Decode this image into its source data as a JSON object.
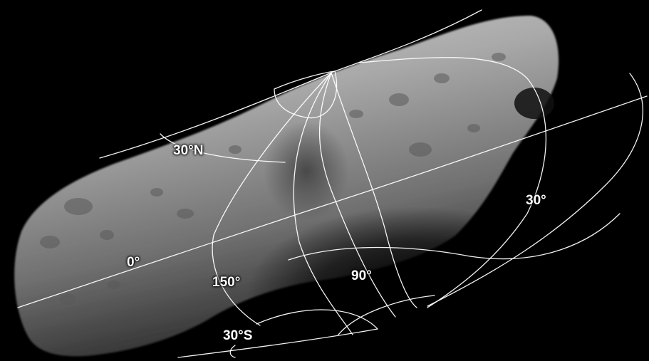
{
  "image": {
    "background_color": "#000000",
    "subject": "asteroid-surface-image",
    "grid_color": "#ffffff"
  },
  "labels": {
    "lat_30n": "30°N",
    "lat_0": "0°",
    "lat_30s": "30°S",
    "lon_150": "150°",
    "lon_90": "90°",
    "lon_30": "30°"
  }
}
